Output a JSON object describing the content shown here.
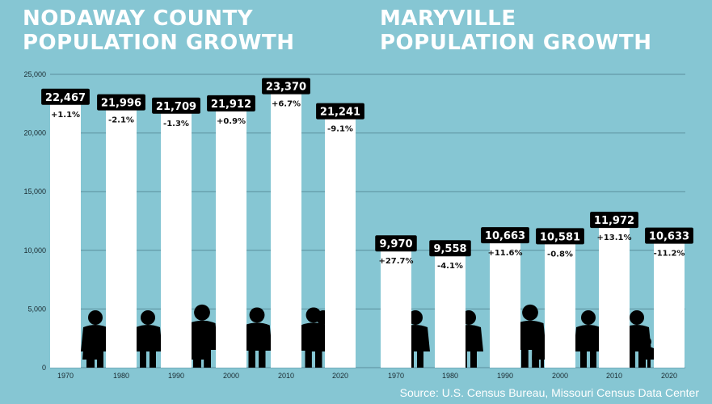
{
  "titles": {
    "left": [
      "NODAWAY COUNTY",
      "POPULATION GROWTH"
    ],
    "right": [
      "MARYVILLE",
      "POPULATION GROWTH"
    ]
  },
  "source": "Source: U.S. Census Bureau, Missouri Census Data Center",
  "colors": {
    "background": "#86c6d3",
    "bar": "#ffffff",
    "badge": "#000000",
    "gridline": "#5a8f9c",
    "silhouette": "#000000"
  },
  "icons": [
    "people-silhouette-icon"
  ],
  "chart_data": [
    {
      "type": "bar",
      "title": "NODAWAY COUNTY POPULATION GROWTH",
      "categories": [
        "1970",
        "1980",
        "1990",
        "2000",
        "2010",
        "2020"
      ],
      "values": [
        22467,
        21996,
        21709,
        21912,
        23370,
        21241
      ],
      "value_labels": [
        "22,467",
        "21,996",
        "21,709",
        "21,912",
        "23,370",
        "21,241"
      ],
      "change_labels": [
        "+1.1%",
        "-2.1%",
        "-1.3%",
        "+0.9%",
        "+6.7%",
        "-9.1%"
      ],
      "ylim": [
        0,
        25000
      ],
      "yticks": [
        0,
        5000,
        10000,
        15000,
        20000,
        25000
      ],
      "ytick_labels": [
        "0",
        "5,000",
        "10,000",
        "15,000",
        "20,000",
        "25,000"
      ],
      "grid": true
    },
    {
      "type": "bar",
      "title": "MARYVILLE POPULATION GROWTH",
      "categories": [
        "1970",
        "1980",
        "1990",
        "2000",
        "2010",
        "2020"
      ],
      "values": [
        9970,
        9558,
        10663,
        10581,
        11972,
        10633
      ],
      "value_labels": [
        "9,970",
        "9,558",
        "10,663",
        "10,581",
        "11,972",
        "10,633"
      ],
      "change_labels": [
        "+27.7%",
        "-4.1%",
        "+11.6%",
        "-0.8%",
        "+13.1%",
        "-11.2%"
      ],
      "ylim": [
        0,
        25000
      ],
      "grid": true
    }
  ]
}
